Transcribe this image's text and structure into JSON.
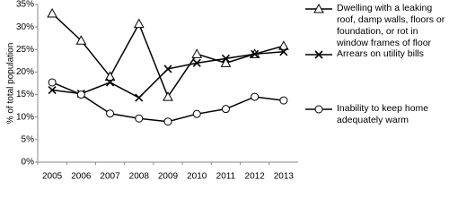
{
  "chart_data": {
    "type": "line",
    "y_label": "% of total population",
    "categories": [
      "2005",
      "2006",
      "2007",
      "2008",
      "2009",
      "2010",
      "2011",
      "2012",
      "2013"
    ],
    "series": [
      {
        "name": "Dwelling with a leaking roof, damp walls, floors or foundation, or rot in window frames of floor",
        "color": "#000000",
        "marker": "triangle",
        "values": [
          33,
          27,
          19,
          30.7,
          14.5,
          24,
          22,
          24,
          25.8
        ]
      },
      {
        "name": "Arrears on utility bills",
        "color": "#000000",
        "marker": "x",
        "values": [
          16,
          15.2,
          17.7,
          14.3,
          20.7,
          22,
          23,
          24,
          24.5
        ]
      },
      {
        "name": "Inability to keep home adequately warm",
        "color": "#000000",
        "marker": "circle",
        "values": [
          17.7,
          15,
          10.8,
          9.7,
          9,
          10.7,
          11.8,
          14.5,
          13.7
        ]
      }
    ],
    "ylim": [
      0,
      35
    ],
    "yticks": [
      {
        "value": 0,
        "label": "0%"
      },
      {
        "value": 5,
        "label": "5%"
      },
      {
        "value": 10,
        "label": "10%"
      },
      {
        "value": 15,
        "label": "15%"
      },
      {
        "value": 20,
        "label": "20%"
      },
      {
        "value": 25,
        "label": "25%"
      },
      {
        "value": 30,
        "label": "30%"
      },
      {
        "value": 35,
        "label": "35%"
      }
    ],
    "grid": false
  }
}
